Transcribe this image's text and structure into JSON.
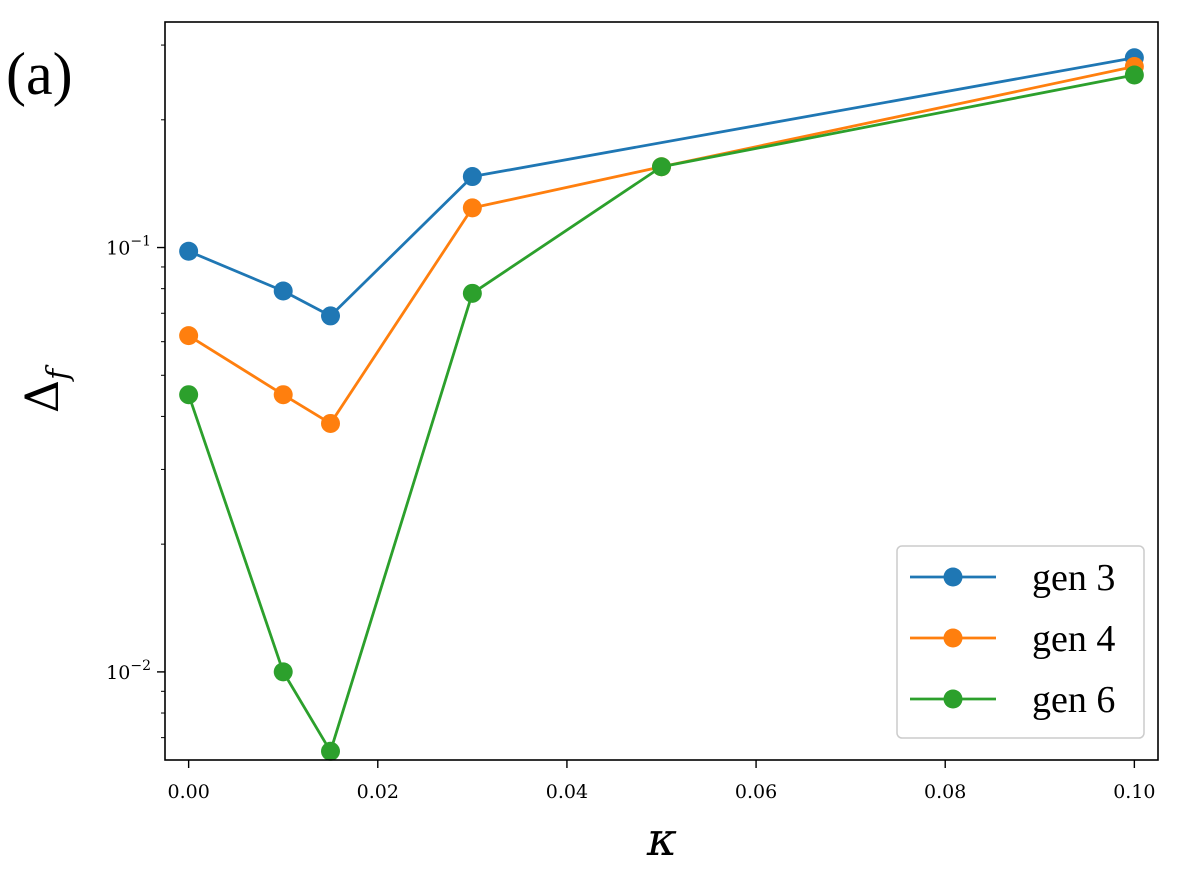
{
  "panel_label": "(a)",
  "chart_data": {
    "type": "line",
    "title": "",
    "xlabel": "κ",
    "ylabel": "Δ",
    "ylabel_subscript": "f",
    "xscale": "linear",
    "yscale": "log",
    "xlim": [
      -0.0025,
      0.1025
    ],
    "ylim": [
      0.0062,
      0.34
    ],
    "x_ticks": [
      0.0,
      0.02,
      0.04,
      0.06,
      0.08,
      0.1
    ],
    "x_tick_labels": [
      "0.00",
      "0.02",
      "0.04",
      "0.06",
      "0.08",
      "0.10"
    ],
    "y_major_ticks": [
      0.01,
      0.1
    ],
    "y_tick_labels": [
      {
        "base": "10",
        "exp": "−2"
      },
      {
        "base": "10",
        "exp": "−1"
      }
    ],
    "grid": false,
    "legend_position": "bottom-right",
    "series": [
      {
        "name": "gen 3",
        "color": "#1f77b4",
        "x": [
          0.0,
          0.01,
          0.015,
          0.03,
          0.1
        ],
        "y": [
          0.098,
          0.079,
          0.069,
          0.147,
          0.28
        ]
      },
      {
        "name": "gen 4",
        "color": "#ff7f0e",
        "x": [
          0.0,
          0.01,
          0.015,
          0.03,
          0.05,
          0.1
        ],
        "y": [
          0.062,
          0.045,
          0.0385,
          0.124,
          0.155,
          0.267
        ]
      },
      {
        "name": "gen 6",
        "color": "#2ca02c",
        "x": [
          0.0,
          0.01,
          0.015,
          0.03,
          0.05,
          0.1
        ],
        "y": [
          0.045,
          0.01,
          0.0065,
          0.078,
          0.155,
          0.255
        ]
      }
    ]
  }
}
